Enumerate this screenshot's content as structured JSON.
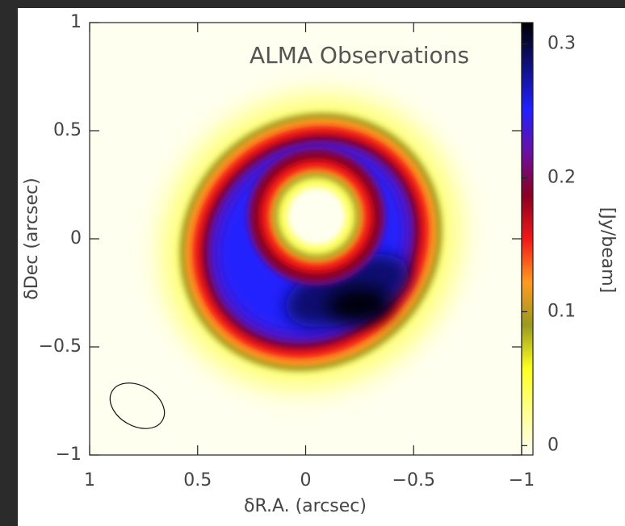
{
  "chart_data": {
    "type": "image",
    "title": "ALMA Observations",
    "x_label": "δR.A. (arcsec)",
    "y_label": "δDec (arcsec)",
    "xlim": [
      1,
      -1
    ],
    "ylim": [
      -1,
      1
    ],
    "xticks": [
      1,
      0.5,
      0,
      {
        "value": -0.5,
        "label": "−0.5"
      },
      {
        "value": -1,
        "label": "−1"
      }
    ],
    "yticks": [
      {
        "value": -1,
        "label": "−1"
      },
      {
        "value": -0.5,
        "label": "−0.5"
      },
      0,
      0.5,
      1
    ],
    "colorbar": {
      "label": "[Jy/beam]",
      "lim": [
        -0.007,
        0.316
      ],
      "ticks": [
        0,
        0.1,
        0.2,
        0.3
      ],
      "colors": [
        "#fffff4",
        "#ffff90",
        "#ffff20",
        "#9a9a20",
        "#ff9a20",
        "#f01818",
        "#8a0020",
        "#6a10a0",
        "#2020ff",
        "#101080",
        "#000000"
      ]
    }
  }
}
